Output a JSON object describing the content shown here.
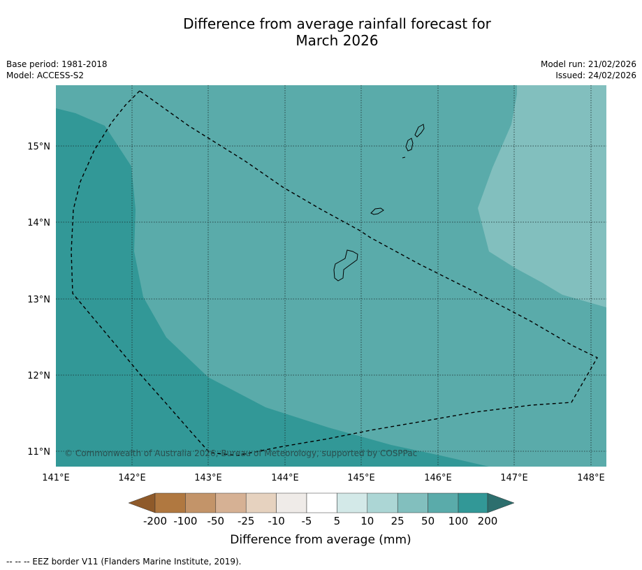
{
  "title_line1": "Difference from average rainfall forecast for",
  "title_line2": "March 2026",
  "base_period": "Base period: 1981-2018",
  "model": "Model: ACCESS-S2",
  "model_run": "Model run: 21/02/2026",
  "issued": "Issued: 24/02/2026",
  "copyright": "© Commonwealth of Australia 2026, Bureau of Meteorology, supported by COSPPac",
  "footer": "--  --  -- EEZ border V11 (Flanders Marine Institute, 2019).",
  "lat_labels": [
    "15°N",
    "14°N",
    "13°N",
    "12°N",
    "11°N"
  ],
  "lon_labels": [
    "141°E",
    "142°E",
    "143°E",
    "144°E",
    "145°E",
    "146°E",
    "147°E",
    "148°E"
  ],
  "colorbar": {
    "title": "Difference from average (mm)",
    "tick_labels": [
      "-200",
      "-100",
      "-50",
      "-25",
      "-10",
      "-5",
      "5",
      "10",
      "25",
      "50",
      "100",
      "200"
    ],
    "colors": [
      "#8f5a2a",
      "#b07840",
      "#c39469",
      "#d6b194",
      "#e6d2bf",
      "#efebe8",
      "#ffffff",
      "#d3e9e8",
      "#acd6d5",
      "#82bfbe",
      "#5aabaa",
      "#329897",
      "#2d6f6e"
    ]
  },
  "map_fill_colors": {
    "category_50_100": "#329897",
    "category_25_50": "#5aabaa",
    "category_10_25": "#82bfbe"
  }
}
